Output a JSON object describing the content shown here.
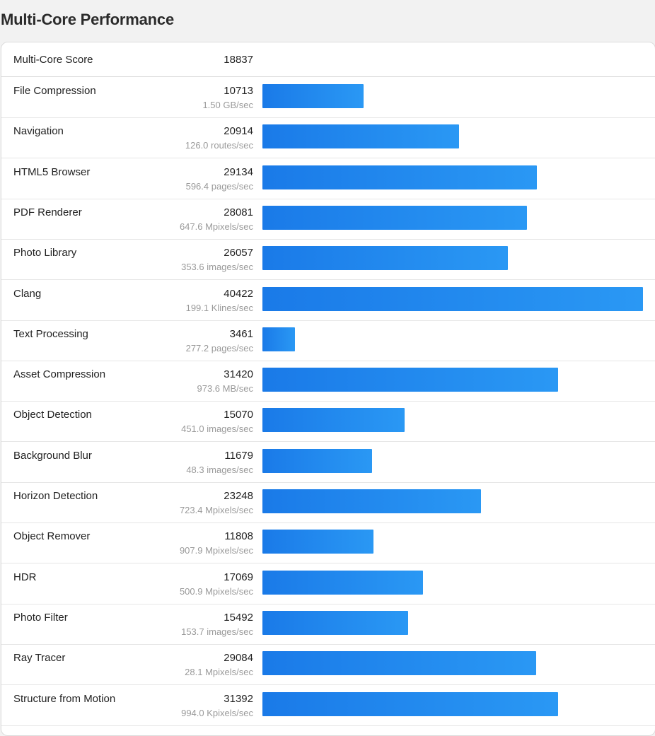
{
  "page": {
    "title": "Multi-Core Performance"
  },
  "chart_data": {
    "type": "bar",
    "orientation": "horizontal",
    "summary": {
      "label": "Multi-Core Score",
      "value": 18837
    },
    "xlim": [
      0,
      40422
    ],
    "grid": false,
    "legend": "none",
    "bar_color": "#1f86ee",
    "rows": [
      {
        "name": "File Compression",
        "score": 10713,
        "rate": "1.50 GB/sec"
      },
      {
        "name": "Navigation",
        "score": 20914,
        "rate": "126.0 routes/sec"
      },
      {
        "name": "HTML5 Browser",
        "score": 29134,
        "rate": "596.4 pages/sec"
      },
      {
        "name": "PDF Renderer",
        "score": 28081,
        "rate": "647.6 Mpixels/sec"
      },
      {
        "name": "Photo Library",
        "score": 26057,
        "rate": "353.6 images/sec"
      },
      {
        "name": "Clang",
        "score": 40422,
        "rate": "199.1 Klines/sec"
      },
      {
        "name": "Text Processing",
        "score": 3461,
        "rate": "277.2 pages/sec"
      },
      {
        "name": "Asset Compression",
        "score": 31420,
        "rate": "973.6 MB/sec"
      },
      {
        "name": "Object Detection",
        "score": 15070,
        "rate": "451.0 images/sec"
      },
      {
        "name": "Background Blur",
        "score": 11679,
        "rate": "48.3 images/sec"
      },
      {
        "name": "Horizon Detection",
        "score": 23248,
        "rate": "723.4 Mpixels/sec"
      },
      {
        "name": "Object Remover",
        "score": 11808,
        "rate": "907.9 Mpixels/sec"
      },
      {
        "name": "HDR",
        "score": 17069,
        "rate": "500.9 Mpixels/sec"
      },
      {
        "name": "Photo Filter",
        "score": 15492,
        "rate": "153.7 images/sec"
      },
      {
        "name": "Ray Tracer",
        "score": 29084,
        "rate": "28.1 Mpixels/sec"
      },
      {
        "name": "Structure from Motion",
        "score": 31392,
        "rate": "994.0 Kpixels/sec"
      }
    ]
  }
}
